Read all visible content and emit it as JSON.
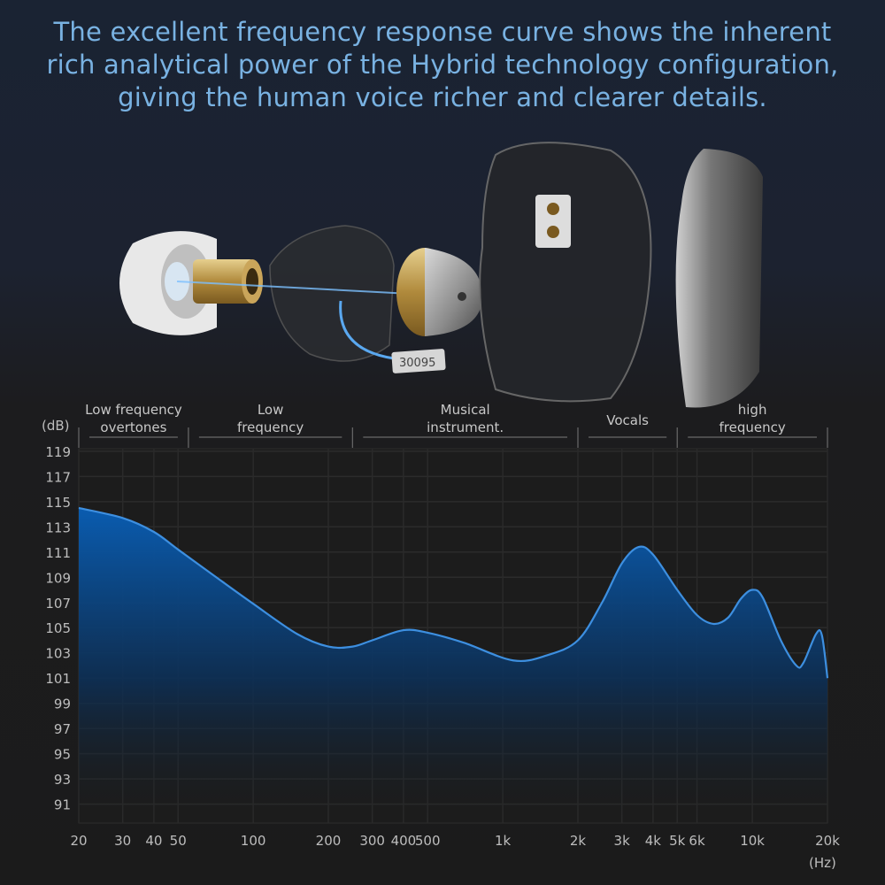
{
  "headline": {
    "lines": [
      "The excellent frequency response curve shows the inherent",
      "rich analytical power of the Hybrid technology configuration,",
      "giving the human voice richer and clearer details."
    ],
    "color": "#79b2e2"
  },
  "illustration": {
    "description_icons": [
      "eartip-icon",
      "nozzle-icon",
      "inner-shell-icon",
      "dynamic-driver-icon",
      "balanced-armature-icon",
      "shell-icon",
      "faceplate-icon"
    ],
    "armature_label": "30095"
  },
  "chart_data": {
    "type": "area",
    "xscale": "log",
    "xlabel": "(Hz)",
    "ylabel": "(dB)",
    "xlim": [
      20,
      20000
    ],
    "ylim": [
      89.5,
      119.2
    ],
    "grid": true,
    "x_ticks": [
      {
        "value": 20,
        "label": "20"
      },
      {
        "value": 30,
        "label": "30"
      },
      {
        "value": 40,
        "label": "40"
      },
      {
        "value": 50,
        "label": "50"
      },
      {
        "value": 100,
        "label": "100"
      },
      {
        "value": 200,
        "label": "200"
      },
      {
        "value": 300,
        "label": "300"
      },
      {
        "value": 400,
        "label": "400"
      },
      {
        "value": 500,
        "label": "500"
      },
      {
        "value": 1000,
        "label": "1k"
      },
      {
        "value": 2000,
        "label": "2k"
      },
      {
        "value": 3000,
        "label": "3k"
      },
      {
        "value": 4000,
        "label": "4k"
      },
      {
        "value": 5000,
        "label": "5k"
      },
      {
        "value": 6000,
        "label": "6k"
      },
      {
        "value": 10000,
        "label": "10k"
      },
      {
        "value": 20000,
        "label": "20k"
      }
    ],
    "y_ticks": [
      119,
      117,
      115,
      113,
      111,
      109,
      107,
      105,
      103,
      101,
      99,
      97,
      95,
      93,
      91
    ],
    "bands": [
      {
        "label_lines": [
          "Low frequency",
          "overtones"
        ],
        "from": 20,
        "to": 55
      },
      {
        "label_lines": [
          "Low",
          "frequency"
        ],
        "from": 55,
        "to": 250
      },
      {
        "label_lines": [
          "Musical",
          "instrument."
        ],
        "from": 250,
        "to": 2000
      },
      {
        "label_lines": [
          "Vocals"
        ],
        "from": 2000,
        "to": 5000
      },
      {
        "label_lines": [
          "high",
          "frequency"
        ],
        "from": 5000,
        "to": 20000
      }
    ],
    "series": [
      {
        "color": "#3d8fe0",
        "x": [
          20,
          30,
          40,
          50,
          70,
          100,
          150,
          200,
          250,
          300,
          400,
          500,
          700,
          1100,
          1500,
          2000,
          2500,
          3000,
          3500,
          4000,
          5000,
          6000,
          7000,
          8000,
          9000,
          10000,
          11000,
          13000,
          15000,
          16000,
          18000,
          19000,
          20000
        ],
        "y": [
          114.5,
          113.7,
          112.6,
          111.2,
          109.1,
          106.9,
          104.5,
          103.5,
          103.5,
          104.0,
          104.8,
          104.6,
          103.8,
          102.4,
          102.8,
          104.0,
          107.0,
          110.1,
          111.4,
          110.8,
          108.0,
          106.0,
          105.3,
          105.8,
          107.3,
          108.0,
          107.4,
          104.0,
          102.0,
          102.2,
          104.5,
          104.4,
          101.0
        ]
      }
    ]
  }
}
